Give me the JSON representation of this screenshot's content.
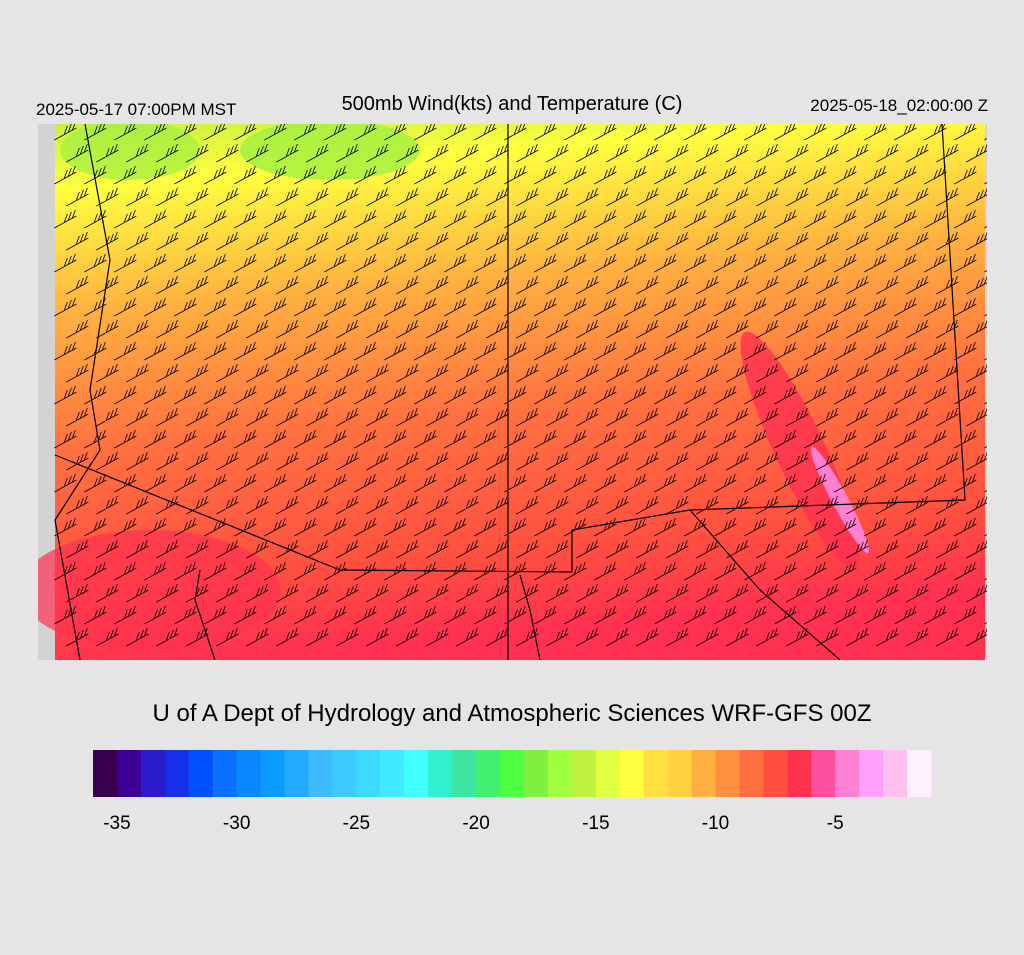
{
  "header": {
    "left": "2025-05-17 07:00PM MST",
    "title": "500mb Wind(kts) and Temperature (C)",
    "right": "2025-05-18_02:00:00 Z"
  },
  "footer": "U of A Dept of Hydrology and Atmospheric Sciences WRF-GFS 00Z",
  "colorbar": {
    "range": [
      -36,
      -1
    ],
    "ticks": [
      -35,
      -30,
      -25,
      -20,
      -15,
      -10,
      -5
    ],
    "colors": [
      "#3a0050",
      "#3c0096",
      "#2a1ccc",
      "#1530e8",
      "#0050ff",
      "#0a70ff",
      "#0a88ff",
      "#0a9cff",
      "#24aaff",
      "#3cbcff",
      "#3ccaff",
      "#3cdaff",
      "#40eaff",
      "#40ffff",
      "#30f0d0",
      "#3ce6a0",
      "#40f070",
      "#4cff40",
      "#80f040",
      "#a0ff40",
      "#c0f040",
      "#e0ff40",
      "#ffff40",
      "#ffe040",
      "#ffd040",
      "#ffb040",
      "#ff9040",
      "#ff7040",
      "#ff5040",
      "#ff3050",
      "#ff50a0",
      "#ff80d0",
      "#ffa0ff",
      "#ffc0f0",
      "#fff0ff"
    ]
  }
}
